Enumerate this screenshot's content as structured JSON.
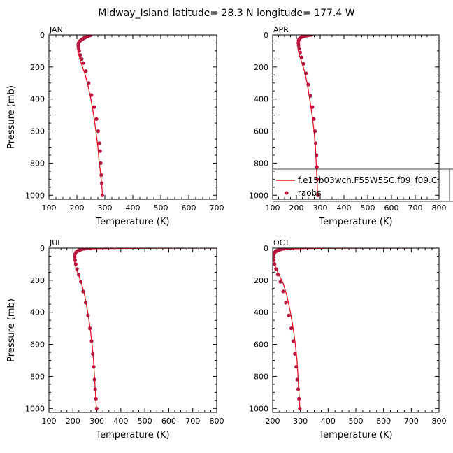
{
  "title": "Midway_Island   latitude=  28.3 N  longitude=  177.4 W",
  "colors": {
    "model_line": "#e8141e",
    "raob_marker": "#b5143c",
    "axis": "#000000"
  },
  "legend": {
    "line_label": "f.e15b03wch.F55W5SC.f09_f09.C",
    "marker_label": "raobs"
  },
  "chart_data": [
    {
      "type": "line",
      "panel": "JAN",
      "xlabel": "Temperature (K)",
      "ylabel": "Pressure (mb)",
      "xlim": [
        100,
        700
      ],
      "ylim": [
        1025,
        0
      ],
      "xticks": [
        100,
        200,
        300,
        400,
        500,
        600,
        700
      ],
      "yticks": [
        0,
        200,
        400,
        600,
        800,
        1000
      ],
      "series": [
        {
          "name": "model",
          "x": [
            250,
            243,
            235,
            225,
            214,
            206,
            203,
            203,
            206,
            212,
            220,
            230,
            240,
            250,
            260,
            268,
            275,
            280,
            284,
            288,
            292
          ],
          "y": [
            3,
            7,
            12,
            20,
            30,
            45,
            65,
            90,
            120,
            160,
            200,
            250,
            320,
            400,
            500,
            600,
            700,
            800,
            850,
            925,
            1000
          ]
        },
        {
          "name": "raobs",
          "x": [
            250,
            246,
            242,
            238,
            233,
            229,
            225,
            221,
            217,
            213,
            209,
            206,
            205,
            205,
            206,
            208,
            212,
            217,
            223,
            232,
            242,
            252,
            262,
            270,
            276,
            280,
            283,
            285,
            287,
            289,
            291
          ],
          "y": [
            0,
            3,
            6,
            10,
            13,
            17,
            20,
            25,
            30,
            35,
            40,
            50,
            60,
            70,
            85,
            100,
            125,
            150,
            175,
            225,
            300,
            375,
            450,
            525,
            600,
            675,
            725,
            800,
            875,
            925,
            1000
          ]
        }
      ]
    },
    {
      "type": "line",
      "panel": "APR",
      "xlabel": "Temperature (K)",
      "ylabel": "",
      "xlim": [
        100,
        800
      ],
      "ylim": [
        1025,
        0
      ],
      "xticks": [
        100,
        200,
        300,
        400,
        500,
        600,
        700,
        800
      ],
      "yticks": [
        0,
        200,
        400,
        600,
        800,
        1000
      ],
      "series": [
        {
          "name": "model",
          "x": [
            270,
            255,
            240,
            225,
            213,
            207,
            206,
            208,
            213,
            222,
            233,
            245,
            256,
            266,
            274,
            280,
            285,
            289
          ],
          "y": [
            2,
            5,
            10,
            18,
            30,
            50,
            75,
            100,
            130,
            170,
            220,
            300,
            400,
            500,
            600,
            700,
            850,
            1000
          ]
        },
        {
          "name": "raobs",
          "x": [
            262,
            252,
            244,
            236,
            229,
            223,
            218,
            214,
            211,
            209,
            208,
            209,
            212,
            216,
            222,
            230,
            240,
            250,
            259,
            267,
            273,
            278,
            281,
            284,
            286,
            288,
            290
          ],
          "y": [
            0,
            2,
            4,
            7,
            10,
            13,
            17,
            22,
            28,
            35,
            50,
            65,
            85,
            110,
            140,
            180,
            240,
            310,
            380,
            450,
            525,
            600,
            675,
            750,
            825,
            900,
            1000
          ]
        }
      ]
    },
    {
      "type": "line",
      "panel": "JUL",
      "xlabel": "Temperature (K)",
      "ylabel": "Pressure (mb)",
      "xlim": [
        100,
        800
      ],
      "ylim": [
        1025,
        0
      ],
      "xticks": [
        100,
        200,
        300,
        400,
        500,
        600,
        700,
        800
      ],
      "yticks": [
        0,
        200,
        400,
        600,
        800,
        1000
      ],
      "series": [
        {
          "name": "model",
          "x": [
            800,
            500,
            300,
            260,
            240,
            226,
            214,
            208,
            206,
            208,
            214,
            224,
            236,
            250,
            262,
            272,
            280,
            286,
            292,
            298
          ],
          "y": [
            0,
            1,
            3,
            6,
            10,
            18,
            30,
            50,
            75,
            100,
            130,
            170,
            220,
            300,
            400,
            500,
            600,
            700,
            850,
            1000
          ]
        },
        {
          "name": "raobs",
          "x": [
            270,
            258,
            248,
            238,
            230,
            223,
            217,
            212,
            209,
            208,
            209,
            212,
            217,
            224,
            233,
            243,
            253,
            263,
            271,
            278,
            283,
            287,
            290,
            293,
            296,
            299
          ],
          "y": [
            0,
            2,
            4,
            7,
            11,
            15,
            20,
            28,
            38,
            55,
            75,
            100,
            130,
            165,
            210,
            270,
            340,
            420,
            500,
            580,
            660,
            740,
            820,
            880,
            940,
            1000
          ]
        }
      ]
    },
    {
      "type": "line",
      "panel": "OCT",
      "xlabel": "Temperature (K)",
      "ylabel": "",
      "xlim": [
        200,
        800
      ],
      "ylim": [
        1025,
        0
      ],
      "xticks": [
        200,
        300,
        400,
        500,
        600,
        700,
        800
      ],
      "yticks": [
        0,
        200,
        400,
        600,
        800,
        1000
      ],
      "series": [
        {
          "name": "model",
          "x": [
            700,
            400,
            300,
            262,
            240,
            224,
            212,
            205,
            203,
            206,
            213,
            224,
            238,
            252,
            264,
            274,
            282,
            288,
            293,
            298
          ],
          "y": [
            0,
            1,
            3,
            6,
            10,
            18,
            30,
            50,
            75,
            100,
            130,
            170,
            220,
            300,
            400,
            500,
            600,
            700,
            850,
            1000
          ]
        },
        {
          "name": "raobs",
          "x": [
            265,
            252,
            241,
            231,
            223,
            216,
            210,
            206,
            204,
            203,
            204,
            207,
            212,
            219,
            228,
            238,
            248,
            258,
            267,
            274,
            280,
            285,
            289,
            292,
            295,
            298
          ],
          "y": [
            0,
            2,
            4,
            7,
            11,
            15,
            20,
            28,
            38,
            55,
            75,
            100,
            130,
            165,
            210,
            270,
            340,
            420,
            500,
            580,
            660,
            740,
            820,
            880,
            940,
            1000
          ]
        }
      ]
    }
  ]
}
